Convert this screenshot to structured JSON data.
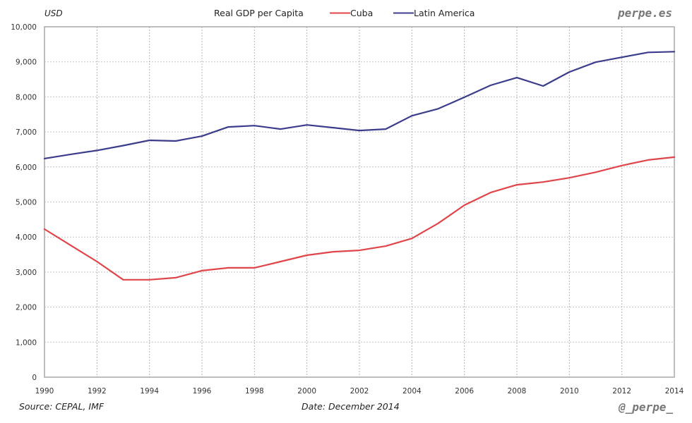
{
  "chart_data": {
    "type": "line",
    "title": "Real GDP per Capita",
    "ylabel": "USD",
    "xlabel": "",
    "xlim": [
      1990,
      2014
    ],
    "ylim": [
      0,
      10000
    ],
    "grid": true,
    "legend_position": "top-center",
    "x": [
      1990,
      1991,
      1992,
      1993,
      1994,
      1995,
      1996,
      1997,
      1998,
      1999,
      2000,
      2001,
      2002,
      2003,
      2004,
      2005,
      2006,
      2007,
      2008,
      2009,
      2010,
      2011,
      2012,
      2013,
      2014
    ],
    "x_ticks": [
      1990,
      1992,
      1994,
      1996,
      1998,
      2000,
      2002,
      2004,
      2006,
      2008,
      2010,
      2012,
      2014
    ],
    "x_tick_labels": [
      "1990",
      "1992",
      "1994",
      "1996",
      "1998",
      "2000",
      "2002",
      "2004",
      "2006",
      "2008",
      "2010",
      "2012",
      "2014"
    ],
    "y_ticks": [
      0,
      1000,
      2000,
      3000,
      4000,
      5000,
      6000,
      7000,
      8000,
      9000,
      10000
    ],
    "y_tick_labels": [
      "0",
      "1,000",
      "2,000",
      "3,000",
      "4,000",
      "5,000",
      "6,000",
      "7,000",
      "8,000",
      "9,000",
      "10,000"
    ],
    "series": [
      {
        "name": "Cuba",
        "color": "#e0454a",
        "values": [
          4225,
          3760,
          3300,
          2780,
          2780,
          2840,
          3040,
          3120,
          3120,
          3300,
          3480,
          3580,
          3620,
          3740,
          3960,
          4390,
          4910,
          5270,
          5490,
          5570,
          5690,
          5850,
          6040,
          6200,
          6280
        ]
      },
      {
        "name": "Latin America",
        "color": "#3c3c8c",
        "values": [
          6240,
          6360,
          6470,
          6610,
          6760,
          6740,
          6880,
          7140,
          7180,
          7080,
          7200,
          7120,
          7040,
          7080,
          7460,
          7660,
          7990,
          8330,
          8550,
          8310,
          8710,
          8990,
          9130,
          9270,
          9290
        ]
      }
    ]
  },
  "header": {
    "unit": "USD",
    "title": "Real GDP per Capita",
    "brand": "perpe.es"
  },
  "legend": [
    {
      "label": "Cuba",
      "color": "#e0454a"
    },
    {
      "label": "Latin America",
      "color": "#3c3c8c"
    }
  ],
  "footer": {
    "source": "Source: CEPAL, IMF",
    "date": "Date: December 2014",
    "handle": "@_perpe_"
  }
}
